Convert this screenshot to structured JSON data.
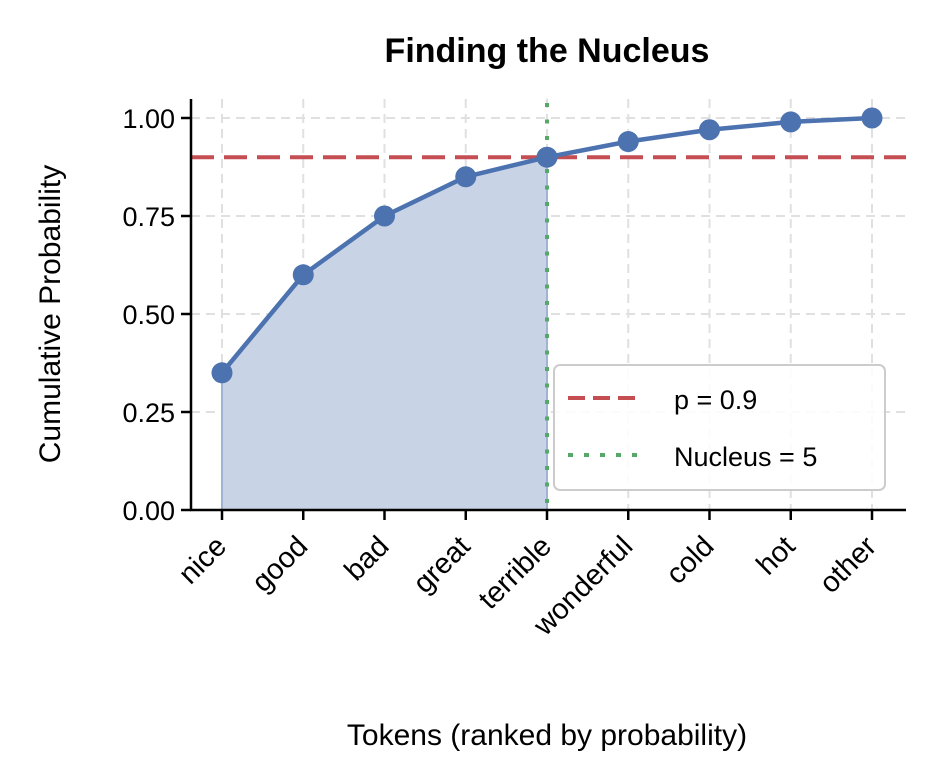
{
  "chart_data": {
    "type": "line",
    "title": "Finding the Nucleus",
    "xlabel": "Tokens (ranked by probability)",
    "ylabel": "Cumulative Probability",
    "categories": [
      "nice",
      "good",
      "bad",
      "great",
      "terrible",
      "wonderful",
      "cold",
      "hot",
      "other"
    ],
    "series": [
      {
        "name": "Cumulative Probability",
        "values": [
          0.35,
          0.6,
          0.75,
          0.85,
          0.9,
          0.94,
          0.97,
          0.99,
          1.0
        ],
        "color": "#4c72b0"
      }
    ],
    "yticks": [
      "0.00",
      "0.25",
      "0.50",
      "0.75",
      "1.00"
    ],
    "ylim": [
      0,
      1.05
    ],
    "grid": true,
    "threshold_line": {
      "label": "p = 0.9",
      "value": 0.9,
      "color": "#c44e52",
      "style": "dashed"
    },
    "nucleus_line": {
      "label": "Nucleus = 5",
      "index": 4,
      "color": "#55a868",
      "style": "dotted"
    },
    "shaded_region": {
      "from_index": 0,
      "to_index": 4,
      "color": "#c8d4e6"
    },
    "legend": {
      "position": "lower right",
      "entries": [
        "p = 0.9",
        "Nucleus = 5"
      ]
    }
  }
}
